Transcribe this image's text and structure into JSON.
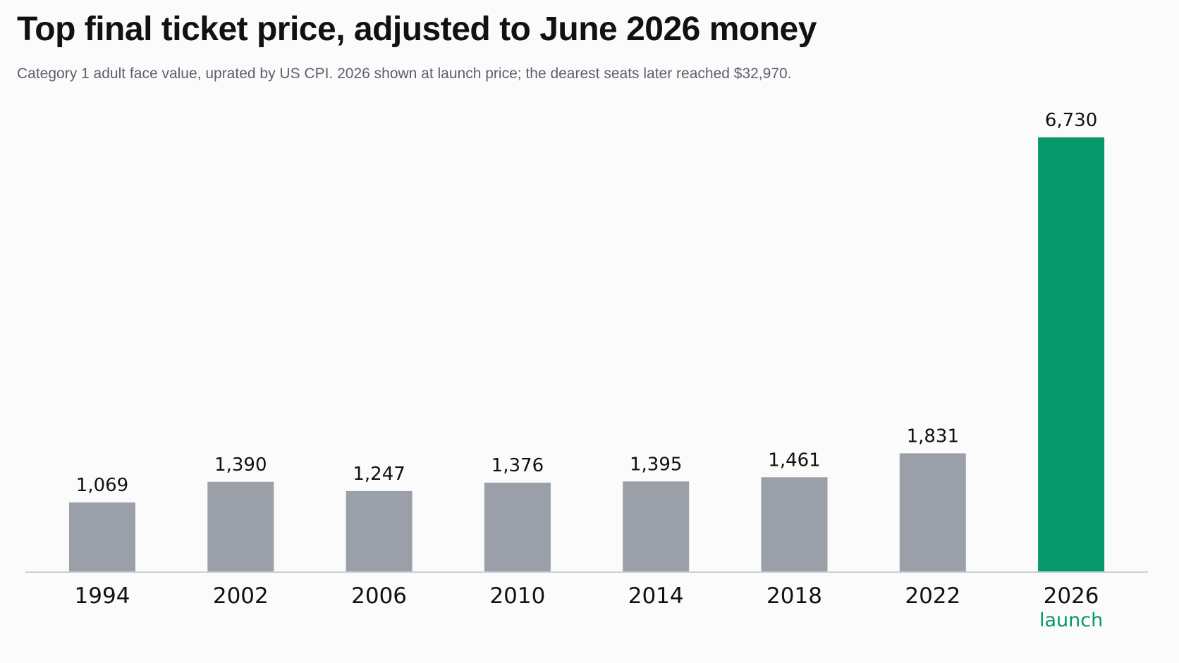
{
  "title": "Top final ticket price, adjusted to June 2026 money",
  "subtitle": "Category 1 adult face value, uprated by US CPI. 2026 shown at launch price; the dearest seats later reached $32,970.",
  "colors": {
    "default_bar": "#9a9fa8",
    "highlight_bar": "#069869",
    "axis_line": "#cdd1d7"
  },
  "chart_data": {
    "type": "bar",
    "title": "Top final ticket price, adjusted to June 2026 money",
    "subtitle": "Category 1 adult face value, uprated by US CPI. 2026 shown at launch price; the dearest seats later reached $32,970.",
    "categories": [
      "1994",
      "2002",
      "2006",
      "2010",
      "2014",
      "2018",
      "2022",
      "2026"
    ],
    "values": [
      1069,
      1390,
      1247,
      1376,
      1395,
      1461,
      1831,
      6730
    ],
    "value_labels": [
      "1,069",
      "1,390",
      "1,247",
      "1,376",
      "1,395",
      "1,461",
      "1,831",
      "6,730"
    ],
    "highlight_category": "2026",
    "category_notes": {
      "2026": "launch"
    },
    "xlabel": "",
    "ylabel": "",
    "ylim": [
      0,
      6730
    ],
    "grid": false,
    "legend": "none"
  }
}
